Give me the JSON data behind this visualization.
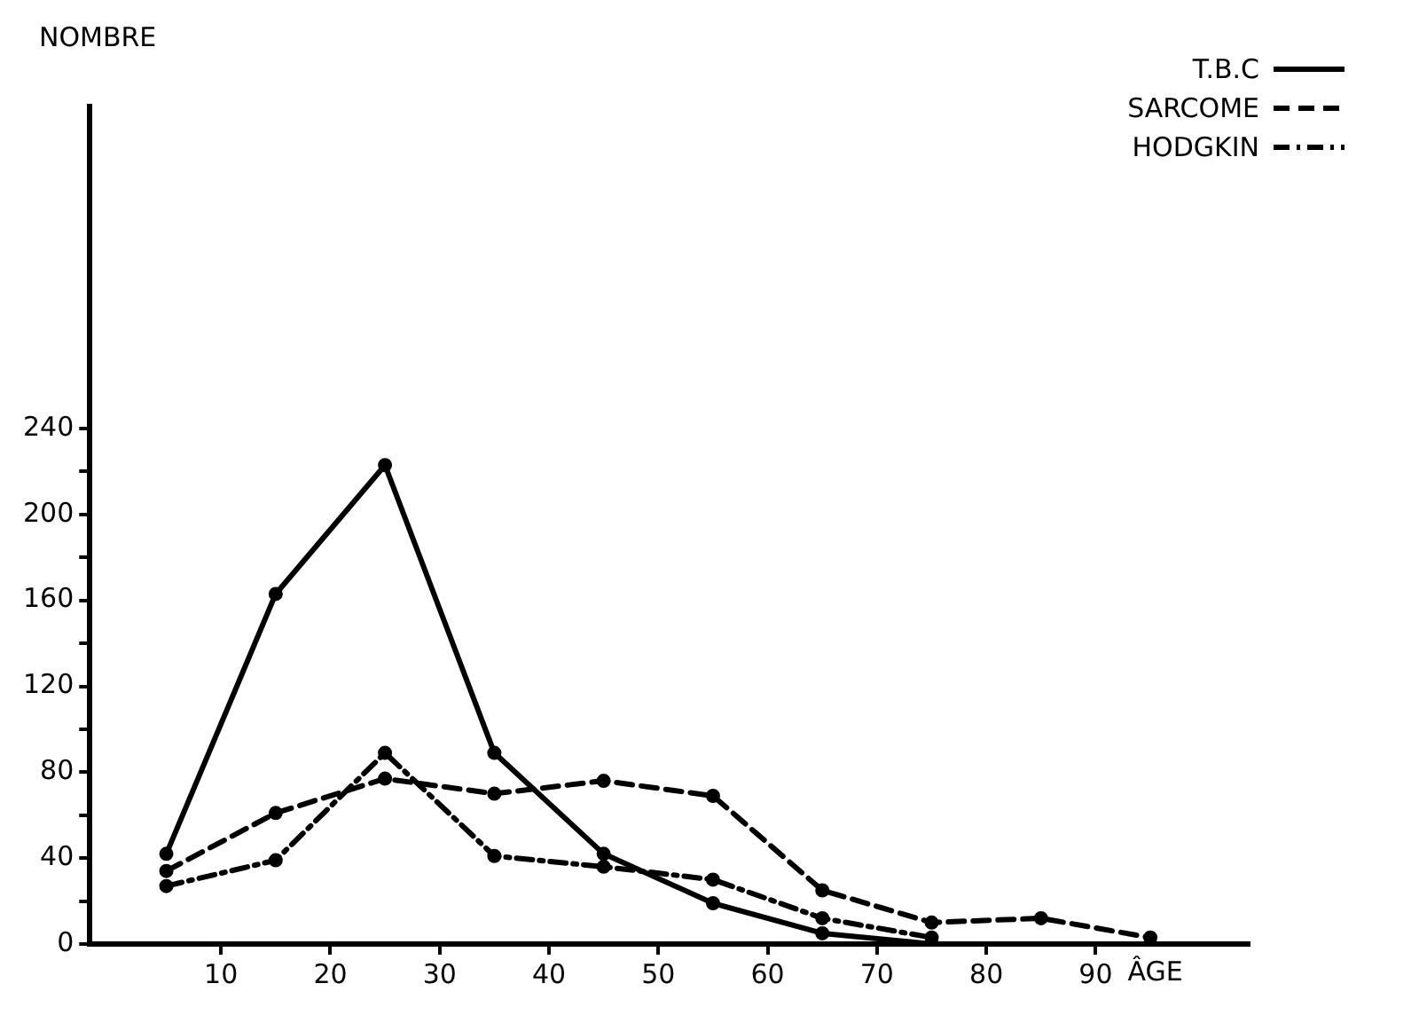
{
  "chart_data": {
    "type": "line",
    "xlabel": "ÂGE",
    "ylabel": "NOMBRE",
    "xlim": [
      -2,
      104
    ],
    "xticks": [
      10,
      20,
      30,
      40,
      50,
      60,
      70,
      80,
      90
    ],
    "ylim": [
      0,
      390
    ],
    "yticks": [
      0,
      {
        "value": 20,
        "label": null
      },
      40,
      {
        "value": 60,
        "label": null
      },
      80,
      {
        "value": 100,
        "label": null
      },
      120,
      {
        "value": 140,
        "label": null
      },
      160,
      {
        "value": 180,
        "label": null
      },
      200,
      {
        "value": 220,
        "label": null
      },
      240
    ],
    "grid": false,
    "legend": "top right",
    "marker": "circle",
    "series": [
      {
        "name": "T.B.C",
        "color": "#000000",
        "line_style": "solid",
        "x": [
          5,
          15,
          25,
          35,
          45,
          55,
          65,
          75
        ],
        "values": [
          42,
          163,
          223,
          89,
          42,
          19,
          5,
          0
        ]
      },
      {
        "name": "SARCOME",
        "color": "#000000",
        "line_style": "dashed",
        "x": [
          5,
          15,
          25,
          35,
          45,
          55,
          65,
          75,
          85,
          95
        ],
        "values": [
          34,
          61,
          77,
          70,
          76,
          69,
          25,
          10,
          12,
          3
        ]
      },
      {
        "name": "HODGKIN",
        "color": "#000000",
        "line_style": "dashdot",
        "x": [
          5,
          15,
          25,
          35,
          45,
          55,
          65,
          75
        ],
        "values": [
          27,
          39,
          89,
          41,
          36,
          30,
          12,
          3
        ]
      }
    ]
  }
}
